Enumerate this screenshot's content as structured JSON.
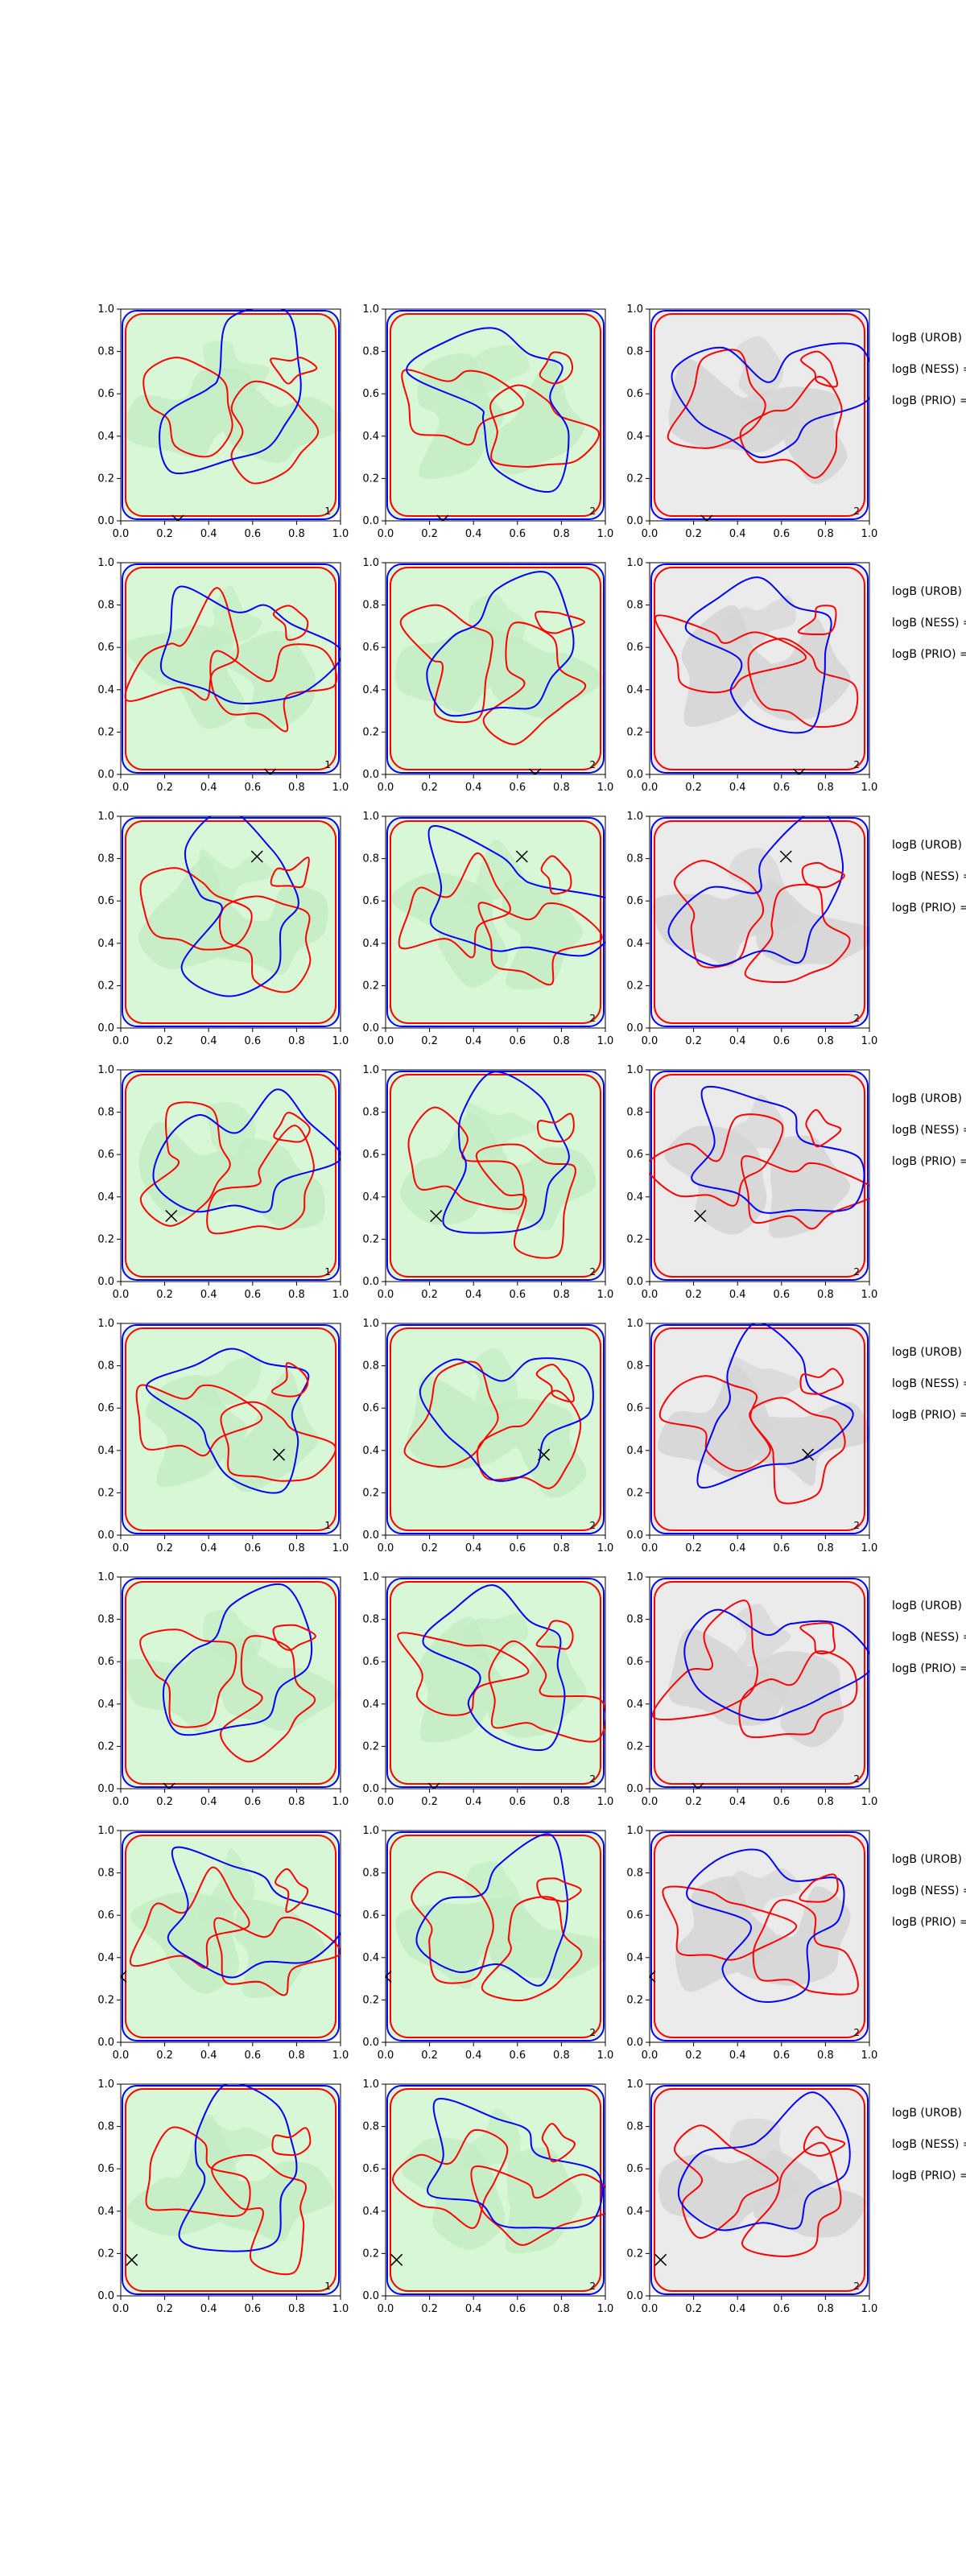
{
  "chart_data": {
    "type": "contour",
    "grid_rows": 8,
    "grid_cols": 3,
    "xlim": [
      0,
      1
    ],
    "ylim": [
      0,
      1
    ],
    "ticks": [
      "0.0",
      "0.2",
      "0.4",
      "0.6",
      "0.8",
      "1.0"
    ],
    "contour_colors": {
      "line_a": "#ff0000",
      "line_b": "#0000ff"
    },
    "fill_colors": {
      "green_light": "#d7f7d7",
      "green": "#c5ecc5",
      "gray_light": "#ebebeb",
      "gray": "#d6d6d6"
    },
    "row_labels": [
      "logB (UROB) =",
      "logB (NESS) =",
      "logB (PRIO) ="
    ],
    "panel_labels": [
      "1",
      "2",
      "2"
    ],
    "rows": [
      {
        "marker": [
          0.26,
          0.0
        ],
        "panel_labels": [
          "1",
          "2",
          "2"
        ],
        "backgrounds": [
          "green",
          "green",
          "gray"
        ]
      },
      {
        "marker": [
          0.68,
          0.0
        ],
        "panel_labels": [
          "1",
          "2",
          "2"
        ],
        "backgrounds": [
          "green",
          "green",
          "gray"
        ]
      },
      {
        "marker": [
          0.62,
          0.81
        ],
        "panel_labels": [
          "",
          "2",
          "2"
        ],
        "backgrounds": [
          "green",
          "green",
          "gray"
        ]
      },
      {
        "marker": [
          0.23,
          0.31
        ],
        "panel_labels": [
          "1",
          "2",
          "2"
        ],
        "backgrounds": [
          "green",
          "green",
          "gray"
        ]
      },
      {
        "marker": [
          0.72,
          0.38
        ],
        "panel_labels": [
          "1",
          "2",
          "2"
        ],
        "backgrounds": [
          "green",
          "green",
          "gray"
        ]
      },
      {
        "marker": [
          0.22,
          0.0
        ],
        "panel_labels": [
          "",
          "2",
          "2"
        ],
        "backgrounds": [
          "green",
          "green",
          "gray"
        ]
      },
      {
        "marker": [
          0.0,
          0.31
        ],
        "panel_labels": [
          "",
          "2",
          "2"
        ],
        "backgrounds": [
          "green",
          "green",
          "gray"
        ]
      },
      {
        "marker": [
          0.05,
          0.17
        ],
        "panel_labels": [
          "1",
          "2",
          "2"
        ],
        "backgrounds": [
          "green",
          "green",
          "gray"
        ]
      }
    ]
  }
}
